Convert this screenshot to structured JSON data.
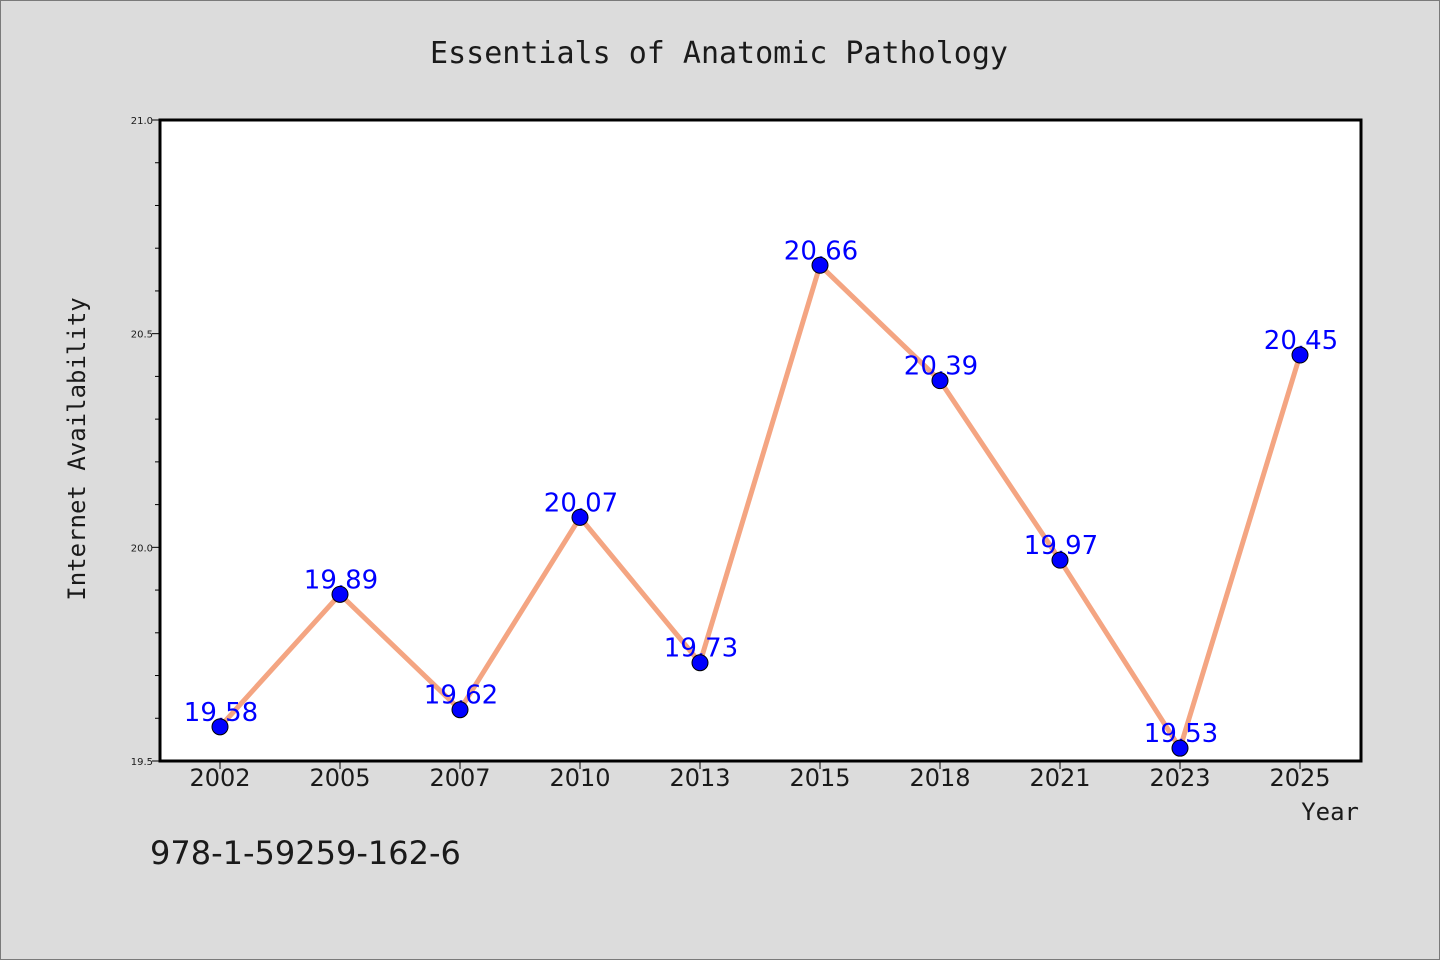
{
  "chart_data": {
    "type": "line",
    "title": "Essentials of Anatomic Pathology",
    "xlabel": "Year",
    "ylabel": "Internet Availability",
    "categories": [
      "2002",
      "2005",
      "2007",
      "2010",
      "2013",
      "2015",
      "2018",
      "2021",
      "2023",
      "2025"
    ],
    "series": [
      {
        "values": [
          19.58,
          19.89,
          19.62,
          20.07,
          19.73,
          20.66,
          20.39,
          19.97,
          19.53,
          20.45
        ]
      }
    ],
    "data_labels": [
      "19.58",
      "19.89",
      "19.62",
      "20.07",
      "19.73",
      "20.66",
      "20.39",
      "19.97",
      "19.53",
      "20.45"
    ],
    "ylim": [
      19.5,
      21.0
    ],
    "yticks": [
      "19.5",
      "20.0",
      "20.5",
      "21.0"
    ],
    "grid": false,
    "legend": "none",
    "colors": {
      "line": "#f4a582",
      "marker": "#0000ff",
      "label": "#0000ff",
      "background": "#dcdcdc",
      "plot_background": "#ffffff"
    }
  },
  "footer": {
    "isbn": "978-1-59259-162-6"
  }
}
